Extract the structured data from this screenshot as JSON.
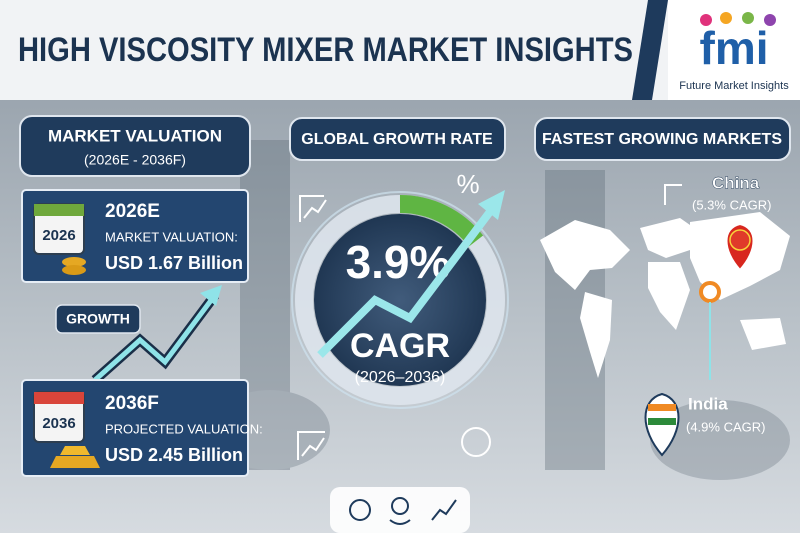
{
  "header": {
    "title": "HIGH VISCOSITY MIXER MARKET INSIGHTS",
    "logo": "fmi",
    "logo_caption": "Future Market Insights"
  },
  "valuation": {
    "heading": "MARKET VALUATION",
    "period": "(2026E - 2036F)",
    "start": {
      "calendar": "2026",
      "year": "2026E",
      "label": "MARKET VALUATION:",
      "value": "USD 1.67 Billion"
    },
    "growth": "GROWTH",
    "end": {
      "calendar": "2036",
      "year": "2036F",
      "label": "PROJECTED VALUATION:",
      "value": "USD 2.45 Billion"
    }
  },
  "growth_rate": {
    "heading": "GLOBAL GROWTH RATE",
    "value": "3.9%",
    "label": "CAGR",
    "period": "(2026–2036)",
    "icon": "%"
  },
  "markets": {
    "heading": "FASTEST GROWING MARKETS",
    "items": [
      {
        "country": "China",
        "cagr": "(5.3% CAGR)"
      },
      {
        "country": "India",
        "cagr": "(4.9% CAGR)"
      }
    ]
  }
}
